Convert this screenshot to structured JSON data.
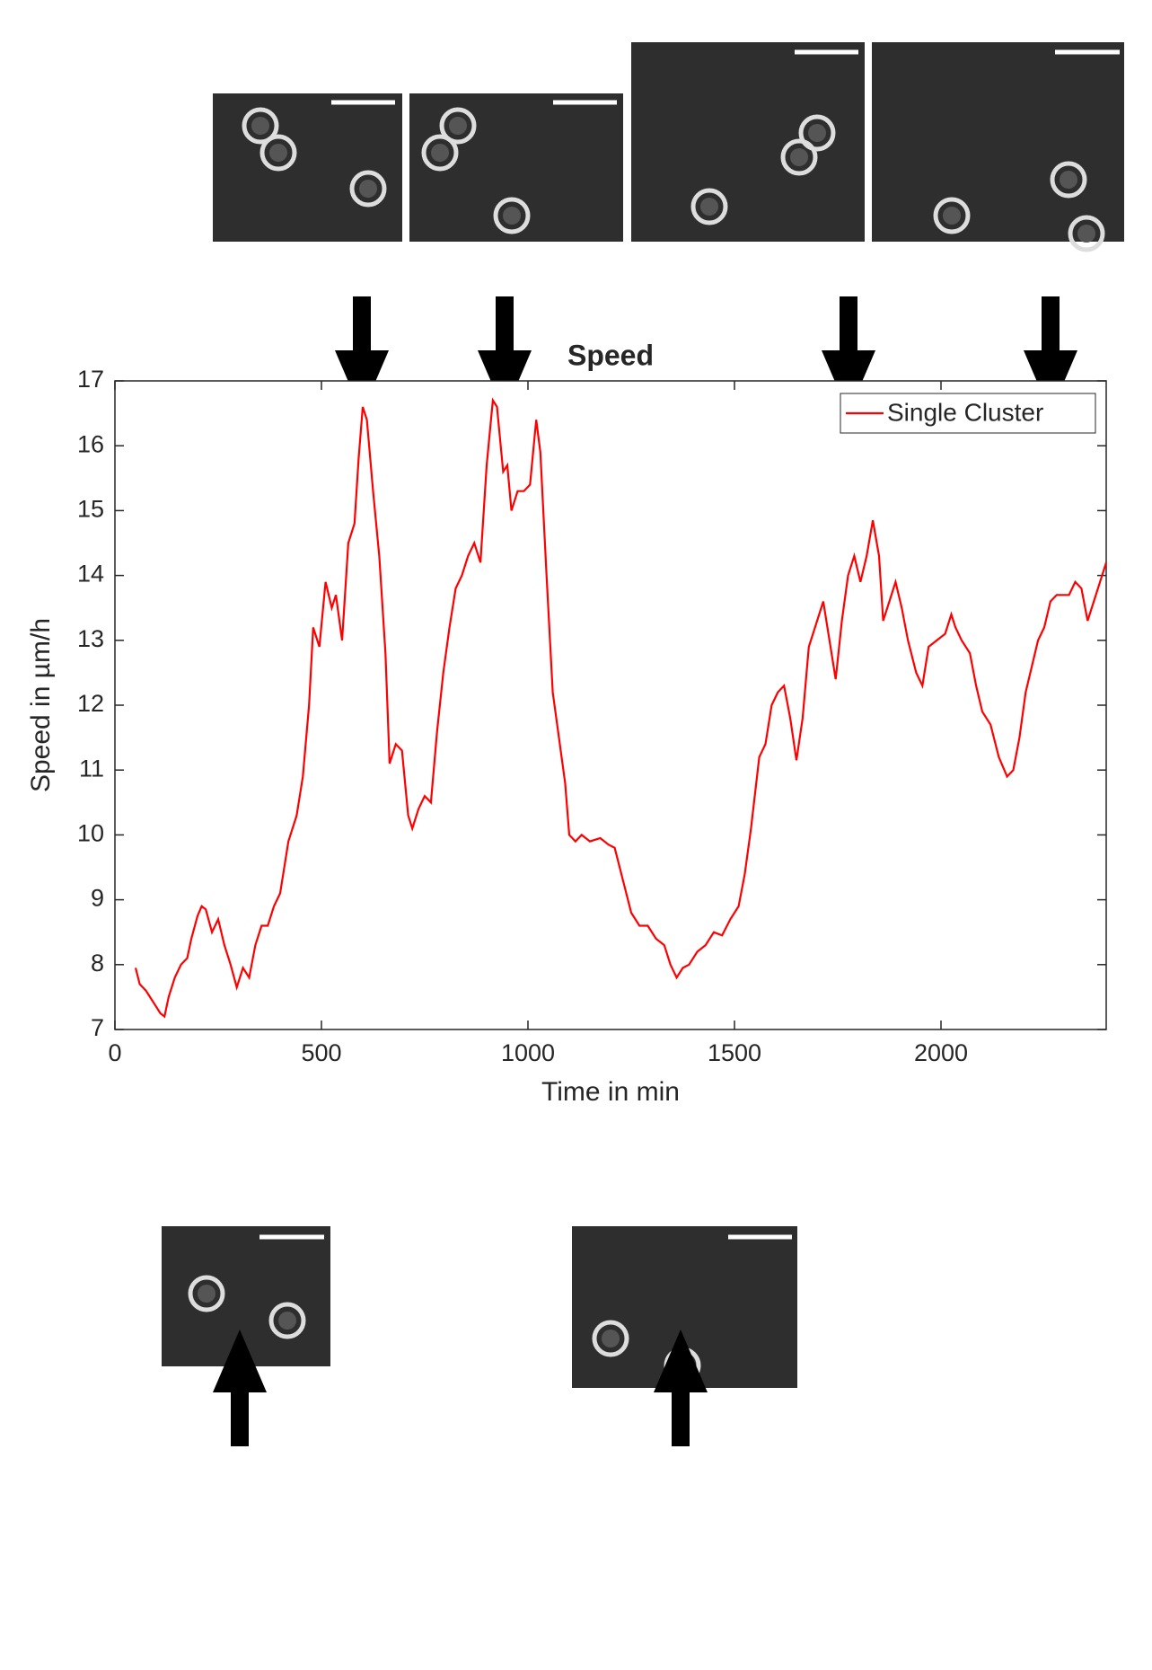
{
  "chart_data": {
    "type": "line",
    "title": "Speed",
    "x_label": "Time in min",
    "y_label": "Speed in µm/h",
    "xlim": [
      0,
      2400
    ],
    "ylim": [
      7,
      17
    ],
    "xticks": [
      0,
      500,
      1000,
      1500,
      2000
    ],
    "yticks": [
      7,
      8,
      9,
      10,
      11,
      12,
      13,
      14,
      15,
      16,
      17
    ],
    "legend": "upper right",
    "series": [
      {
        "name": "Single Cluster",
        "color": "#ff0000",
        "x": [
          50,
          60,
          75,
          90,
          100,
          110,
          120,
          130,
          145,
          160,
          175,
          185,
          200,
          210,
          220,
          235,
          250,
          265,
          280,
          295,
          310,
          325,
          340,
          355,
          370,
          385,
          400,
          420,
          440,
          455,
          470,
          480,
          495,
          510,
          525,
          535,
          550,
          565,
          580,
          590,
          600,
          610,
          625,
          640,
          655,
          665,
          680,
          695,
          710,
          720,
          735,
          750,
          765,
          780,
          795,
          810,
          825,
          840,
          855,
          870,
          885,
          900,
          915,
          925,
          940,
          950,
          960,
          975,
          990,
          1005,
          1020,
          1030,
          1045,
          1060,
          1075,
          1090,
          1100,
          1115,
          1130,
          1150,
          1175,
          1195,
          1210,
          1230,
          1250,
          1270,
          1290,
          1310,
          1330,
          1345,
          1360,
          1375,
          1390,
          1410,
          1430,
          1450,
          1470,
          1490,
          1510,
          1525,
          1540,
          1560,
          1575,
          1590,
          1605,
          1620,
          1635,
          1650,
          1665,
          1680,
          1695,
          1715,
          1730,
          1745,
          1760,
          1775,
          1790,
          1805,
          1820,
          1835,
          1850,
          1860,
          1875,
          1890,
          1905,
          1920,
          1940,
          1955,
          1970,
          1990,
          2010,
          2025,
          2035,
          2050,
          2070,
          2085,
          2100,
          2120,
          2140,
          2160,
          2175,
          2190,
          2205,
          2220,
          2235,
          2250,
          2265,
          2280,
          2295,
          2310,
          2325,
          2340,
          2355,
          2370,
          2385,
          2400
        ],
        "values": [
          7.95,
          7.7,
          7.6,
          7.45,
          7.35,
          7.25,
          7.2,
          7.5,
          7.8,
          8.0,
          8.1,
          8.4,
          8.75,
          8.9,
          8.85,
          8.5,
          8.7,
          8.3,
          8.0,
          7.65,
          7.95,
          7.8,
          8.3,
          8.6,
          8.6,
          8.9,
          9.1,
          9.9,
          10.3,
          10.9,
          12.0,
          13.2,
          12.9,
          13.9,
          13.5,
          13.7,
          13.0,
          14.5,
          14.8,
          15.8,
          16.6,
          16.4,
          15.3,
          14.3,
          12.8,
          11.1,
          11.4,
          11.3,
          10.3,
          10.1,
          10.4,
          10.6,
          10.5,
          11.6,
          12.5,
          13.2,
          13.8,
          14.0,
          14.3,
          14.5,
          14.2,
          15.7,
          16.7,
          16.6,
          15.6,
          15.7,
          15.0,
          15.3,
          15.3,
          15.4,
          16.4,
          15.9,
          14.0,
          12.2,
          11.5,
          10.8,
          10.0,
          9.9,
          10.0,
          9.9,
          9.95,
          9.85,
          9.8,
          9.3,
          8.8,
          8.6,
          8.6,
          8.4,
          8.3,
          8.0,
          7.8,
          7.95,
          8.0,
          8.2,
          8.3,
          8.5,
          8.45,
          8.7,
          8.9,
          9.4,
          10.1,
          11.2,
          11.4,
          12.0,
          12.2,
          12.3,
          11.8,
          11.15,
          11.8,
          12.9,
          13.2,
          13.6,
          13.0,
          12.4,
          13.3,
          14.0,
          14.3,
          13.9,
          14.3,
          14.85,
          14.3,
          13.3,
          13.6,
          13.9,
          13.5,
          13.0,
          12.5,
          12.3,
          12.9,
          13.0,
          13.1,
          13.4,
          13.2,
          13.0,
          12.8,
          12.3,
          11.9,
          11.7,
          11.2,
          10.9,
          11.0,
          11.5,
          12.2,
          12.6,
          13.0,
          13.2,
          13.6,
          13.7,
          13.7,
          13.7,
          13.9,
          13.8,
          13.3,
          13.6,
          13.9,
          14.2
        ]
      }
    ]
  }
}
